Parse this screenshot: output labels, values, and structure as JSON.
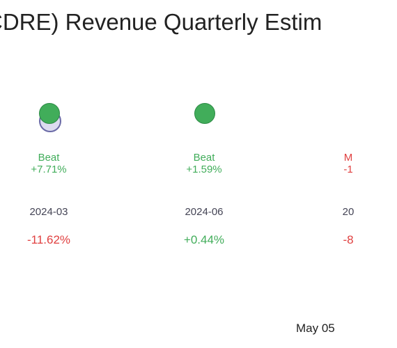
{
  "title": "CDRE) Revenue Quarterly Estim",
  "footer_date": "May 05",
  "colors": {
    "beat": "#41ad5a",
    "miss": "#e04040",
    "estimate": "#6a6aa6"
  },
  "chart_data": {
    "type": "scatter",
    "title": "CDRE) Revenue Quarterly Estim",
    "quarters": [
      {
        "label": "2024-03",
        "result": "Beat",
        "surprise": "+7.71%",
        "change": "-11.62%",
        "has_estimate_marker": true
      },
      {
        "label": "2024-06",
        "result": "Beat",
        "surprise": "+1.59%",
        "change": "+0.44%",
        "has_estimate_marker": false
      },
      {
        "label": "20",
        "result": "M",
        "surprise": "-1",
        "change": "-8",
        "has_estimate_marker": false
      }
    ]
  }
}
